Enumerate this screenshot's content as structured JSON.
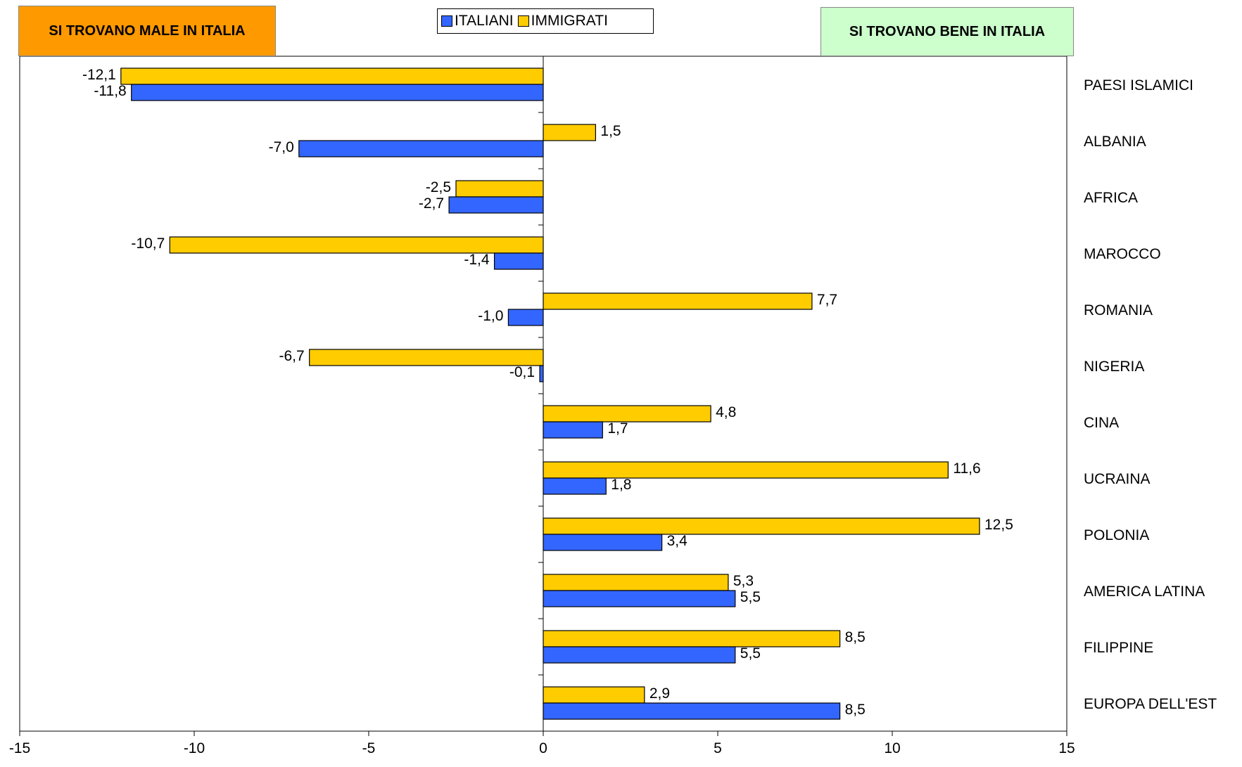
{
  "chart_data": {
    "type": "bar",
    "orientation": "horizontal",
    "categories": [
      "PAESI ISLAMICI",
      "ALBANIA",
      "AFRICA",
      "MAROCCO",
      "ROMANIA",
      "NIGERIA",
      "CINA",
      "UCRAINA",
      "POLONIA",
      "AMERICA LATINA",
      "FILIPPINE",
      "EUROPA DELL'EST"
    ],
    "series": [
      {
        "name": "ITALIANI",
        "color": "#3366FF",
        "values": [
          -11.8,
          -7.0,
          -2.7,
          -1.4,
          -1.0,
          -0.1,
          1.7,
          1.8,
          3.4,
          5.5,
          5.5,
          8.5
        ],
        "labels": [
          "-11,8",
          "-7,0",
          "-2,7",
          "-1,4",
          "-1,0",
          "-0,1",
          "1,7",
          "1,8",
          "3,4",
          "5,5",
          "5,5",
          "8,5"
        ]
      },
      {
        "name": "IMMIGRATI",
        "color": "#FFCC00",
        "values": [
          -12.1,
          1.5,
          -2.5,
          -10.7,
          7.7,
          -6.7,
          4.8,
          11.6,
          12.5,
          5.3,
          8.5,
          2.9
        ],
        "labels": [
          "-12,1",
          "1,5",
          "-2,5",
          "-10,7",
          "7,7",
          "-6,7",
          "4,8",
          "11,6",
          "12,5",
          "5,3",
          "8,5",
          "2,9"
        ]
      }
    ],
    "xlim": [
      -15,
      15
    ],
    "xticks": [
      -15,
      -10,
      -5,
      0,
      5,
      10,
      15
    ],
    "grid": false,
    "legend_position": "top-center",
    "annotations": {
      "left": {
        "text": "SI TROVANO MALE IN ITALIA",
        "color": "#FF9900"
      },
      "right": {
        "text": "SI TROVANO BENE IN ITALIA",
        "color": "#CCFFCC"
      }
    }
  }
}
